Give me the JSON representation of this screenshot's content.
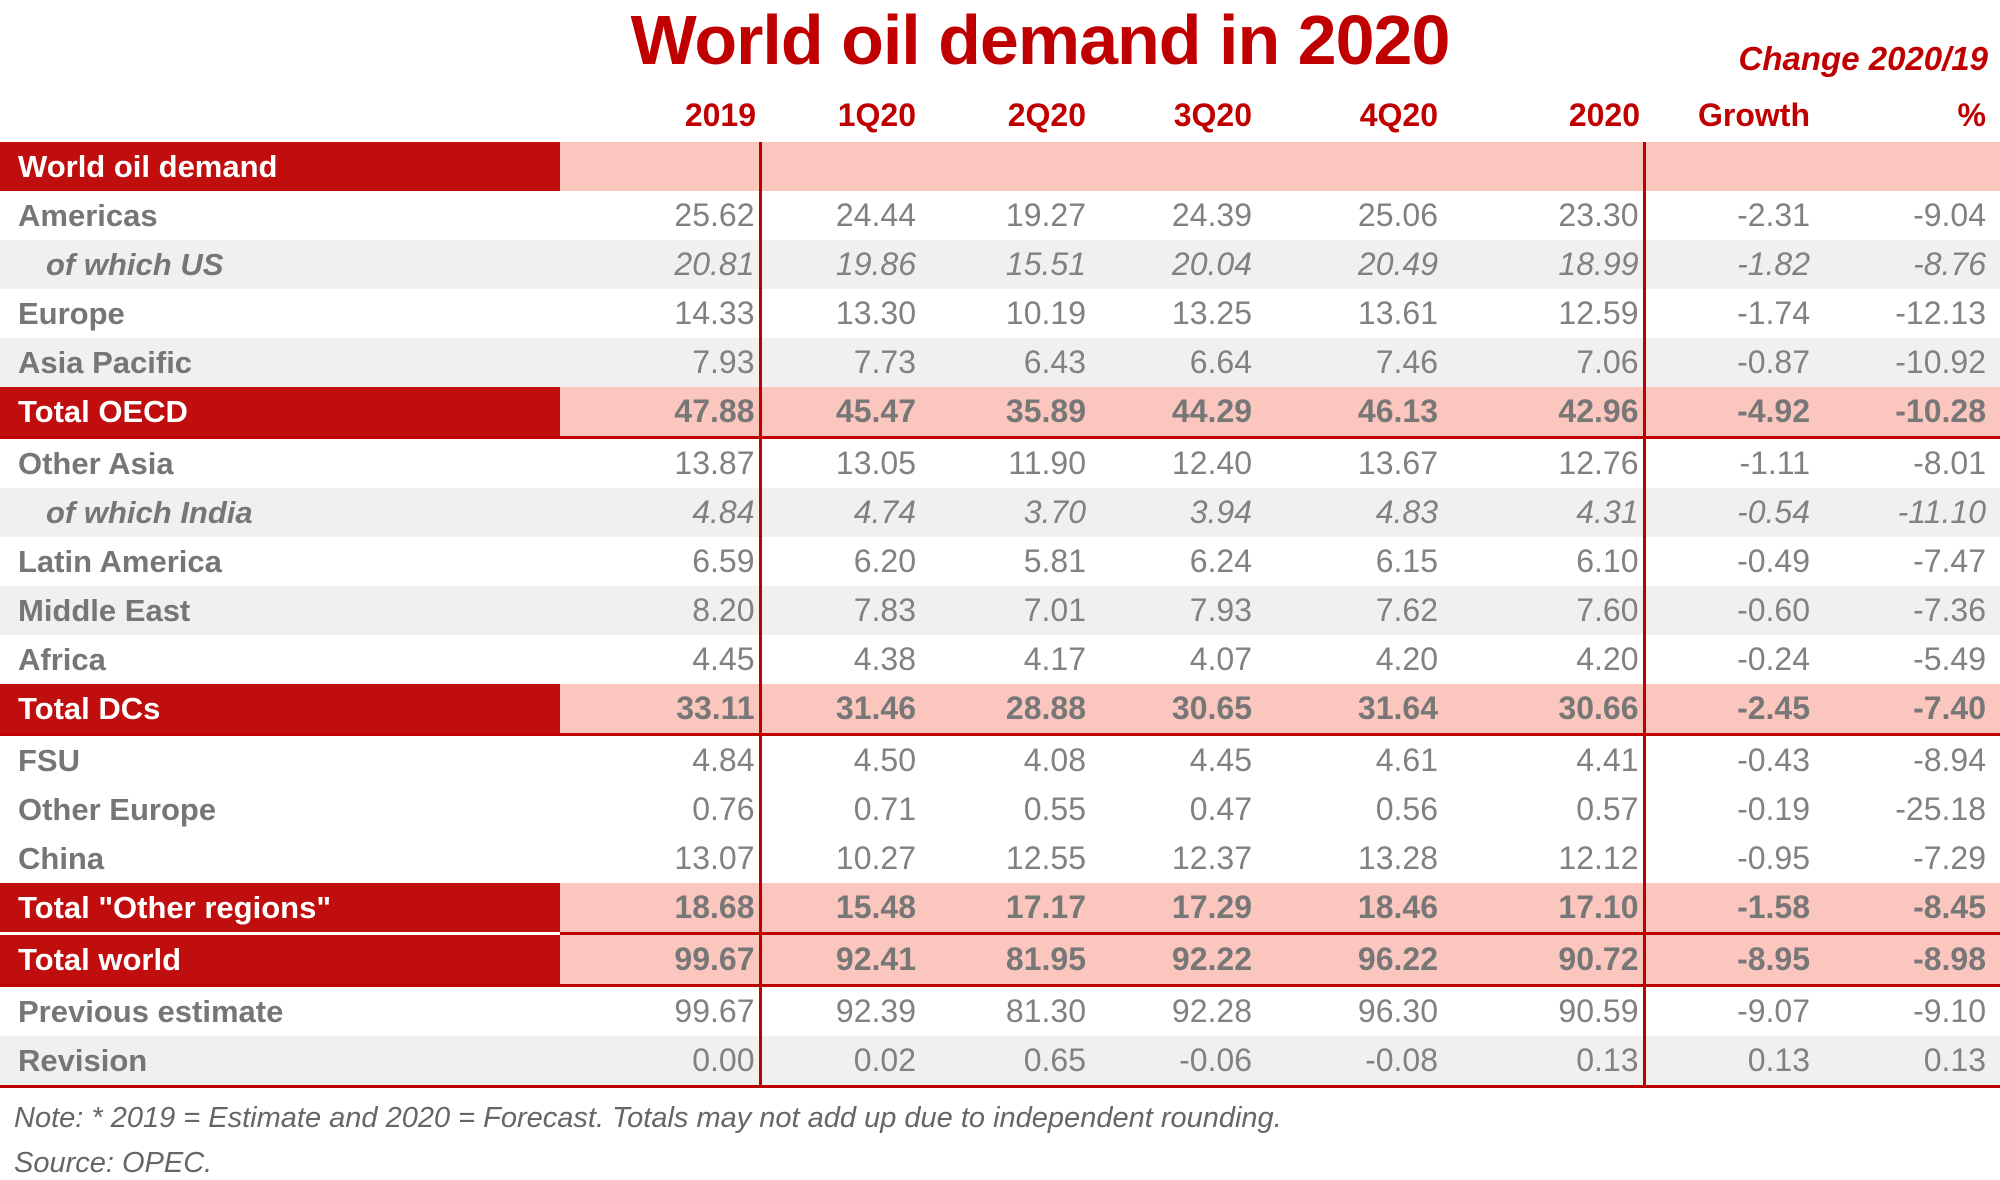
{
  "title": "World oil demand in 2020",
  "change_header": "Change 2020/19",
  "note": "Note: * 2019 = Estimate and 2020 = Forecast. Totals may not add up due to independent rounding.",
  "source": "Source: OPEC.",
  "colors": {
    "title_red": "#C00000",
    "band_red": "#C00D0D",
    "band_pink": "#FBC6BE",
    "stripe_gray": "#F0F0F0",
    "number_gray": "#818181",
    "label_gray": "#767676",
    "note_gray": "#666666"
  },
  "chart_data": {
    "type": "table",
    "title": "World oil demand in 2020",
    "columns": [
      "2019",
      "1Q20",
      "2Q20",
      "3Q20",
      "4Q20",
      "2020",
      "Growth",
      "%"
    ],
    "rows": [
      {
        "label": "World oil demand",
        "style": "section-header",
        "shaded": false,
        "divider": false,
        "values": [
          "",
          "",
          "",
          "",
          "",
          "",
          "",
          ""
        ]
      },
      {
        "label": "Americas",
        "style": "region",
        "shaded": false,
        "divider": false,
        "values": [
          "25.62",
          "24.44",
          "19.27",
          "24.39",
          "25.06",
          "23.30",
          "-2.31",
          "-9.04"
        ]
      },
      {
        "label": "of which US",
        "style": "subregion",
        "shaded": true,
        "divider": false,
        "values": [
          "20.81",
          "19.86",
          "15.51",
          "20.04",
          "20.49",
          "18.99",
          "-1.82",
          "-8.76"
        ]
      },
      {
        "label": "Europe",
        "style": "region",
        "shaded": false,
        "divider": false,
        "values": [
          "14.33",
          "13.30",
          "10.19",
          "13.25",
          "13.61",
          "12.59",
          "-1.74",
          "-12.13"
        ]
      },
      {
        "label": "Asia Pacific",
        "style": "region",
        "shaded": true,
        "divider": false,
        "values": [
          "7.93",
          "7.73",
          "6.43",
          "6.64",
          "7.46",
          "7.06",
          "-0.87",
          "-10.92"
        ]
      },
      {
        "label": "Total OECD",
        "style": "total",
        "shaded": false,
        "divider": true,
        "values": [
          "47.88",
          "45.47",
          "35.89",
          "44.29",
          "46.13",
          "42.96",
          "-4.92",
          "-10.28"
        ]
      },
      {
        "label": "Other Asia",
        "style": "region",
        "shaded": false,
        "divider": false,
        "values": [
          "13.87",
          "13.05",
          "11.90",
          "12.40",
          "13.67",
          "12.76",
          "-1.11",
          "-8.01"
        ]
      },
      {
        "label": "of which India",
        "style": "subregion",
        "shaded": true,
        "divider": false,
        "values": [
          "4.84",
          "4.74",
          "3.70",
          "3.94",
          "4.83",
          "4.31",
          "-0.54",
          "-11.10"
        ]
      },
      {
        "label": "Latin America",
        "style": "region",
        "shaded": false,
        "divider": false,
        "values": [
          "6.59",
          "6.20",
          "5.81",
          "6.24",
          "6.15",
          "6.10",
          "-0.49",
          "-7.47"
        ]
      },
      {
        "label": "Middle East",
        "style": "region",
        "shaded": true,
        "divider": false,
        "values": [
          "8.20",
          "7.83",
          "7.01",
          "7.93",
          "7.62",
          "7.60",
          "-0.60",
          "-7.36"
        ]
      },
      {
        "label": "Africa",
        "style": "region",
        "shaded": false,
        "divider": false,
        "values": [
          "4.45",
          "4.38",
          "4.17",
          "4.07",
          "4.20",
          "4.20",
          "-0.24",
          "-5.49"
        ]
      },
      {
        "label": "Total DCs",
        "style": "total",
        "shaded": false,
        "divider": true,
        "values": [
          "33.11",
          "31.46",
          "28.88",
          "30.65",
          "31.64",
          "30.66",
          "-2.45",
          "-7.40"
        ]
      },
      {
        "label": "FSU",
        "style": "region",
        "shaded": false,
        "divider": false,
        "values": [
          "4.84",
          "4.50",
          "4.08",
          "4.45",
          "4.61",
          "4.41",
          "-0.43",
          "-8.94"
        ]
      },
      {
        "label": "Other Europe",
        "style": "region",
        "shaded": false,
        "divider": false,
        "values": [
          "0.76",
          "0.71",
          "0.55",
          "0.47",
          "0.56",
          "0.57",
          "-0.19",
          "-25.18"
        ]
      },
      {
        "label": "China",
        "style": "region",
        "shaded": false,
        "divider": false,
        "values": [
          "13.07",
          "10.27",
          "12.55",
          "12.37",
          "13.28",
          "12.12",
          "-0.95",
          "-7.29"
        ]
      },
      {
        "label": "Total \"Other regions\"",
        "style": "total",
        "shaded": false,
        "divider": true,
        "label_gap": true,
        "values": [
          "18.68",
          "15.48",
          "17.17",
          "17.29",
          "18.46",
          "17.10",
          "-1.58",
          "-8.45"
        ]
      },
      {
        "label": "Total world",
        "style": "total",
        "shaded": false,
        "divider": true,
        "values": [
          "99.67",
          "92.41",
          "81.95",
          "92.22",
          "96.22",
          "90.72",
          "-8.95",
          "-8.98"
        ]
      },
      {
        "label": "Previous estimate",
        "style": "region",
        "shaded": false,
        "divider": false,
        "values": [
          "99.67",
          "92.39",
          "81.30",
          "92.28",
          "96.30",
          "90.59",
          "-9.07",
          "-9.10"
        ]
      },
      {
        "label": "Revision",
        "style": "region",
        "shaded": true,
        "divider": true,
        "values": [
          "0.00",
          "0.02",
          "0.65",
          "-0.06",
          "-0.08",
          "0.13",
          "0.13",
          "0.13"
        ]
      }
    ]
  }
}
